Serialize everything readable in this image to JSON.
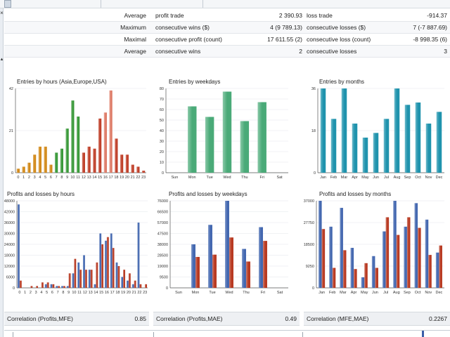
{
  "stats": {
    "rows": [
      {
        "label": "Average",
        "name1": "profit trade",
        "value1": "2 390.93",
        "name2": "loss trade",
        "value2": "-914.37"
      },
      {
        "label": "Maximum",
        "name1": "consecutive wins ($)",
        "value1": "4 (9 789.13)",
        "name2": "consecutive losses ($)",
        "value2": "7 (-7 887.69)"
      },
      {
        "label": "Maximal",
        "name1": "consecutive profit (count)",
        "value1": "17 611.55 (2)",
        "name2": "consecutive loss (count)",
        "value2": "-8 998.35 (6)"
      },
      {
        "label": "Average",
        "name1": "consecutive wins",
        "value1": "2",
        "name2": "consecutive losses",
        "value2": "3"
      }
    ]
  },
  "colors": {
    "hours_orange": "#d28a1a",
    "hours_green": "#3a9a3a",
    "hours_red": "#c0412b",
    "hours_pink": "#de7c68",
    "weekday_green": "#4aaa78",
    "month_teal": "#1f93ad",
    "profit_blue": "#4468b0",
    "loss_red": "#b83a22"
  },
  "correlations": [
    {
      "label": "Correlation (Profits,MFE)",
      "value": "0.85"
    },
    {
      "label": "Correlation (Profits,MAE)",
      "value": "0.49"
    },
    {
      "label": "Correlation (MFE,MAE)",
      "value": "0.2267"
    }
  ],
  "chart_data": [
    {
      "id": "entries_hours",
      "type": "bar",
      "title": "Entries by hours (Asia,Europe,USA)",
      "categories": [
        "0",
        "1",
        "2",
        "3",
        "4",
        "5",
        "6",
        "7",
        "8",
        "9",
        "10",
        "11",
        "12",
        "13",
        "14",
        "15",
        "16",
        "17",
        "18",
        "19",
        "20",
        "21",
        "22",
        "23"
      ],
      "values": [
        2,
        3,
        5,
        9,
        13,
        13,
        4,
        10,
        12,
        22,
        36,
        28,
        10,
        13,
        12,
        27,
        30,
        41,
        17,
        9,
        9,
        4,
        3,
        1
      ],
      "ylim": [
        0,
        42
      ],
      "yticks": [
        "0",
        "21",
        "42"
      ]
    },
    {
      "id": "entries_weekdays",
      "type": "bar",
      "title": "Entries by weekdays",
      "categories": [
        "Sun",
        "Mon",
        "Tue",
        "Wed",
        "Thu",
        "Fri",
        "Sat"
      ],
      "values": [
        0,
        63,
        53,
        77,
        49,
        67,
        0
      ],
      "ylim": [
        0,
        80
      ],
      "yticks": [
        "0",
        "10",
        "20",
        "30",
        "40",
        "50",
        "60",
        "70",
        "80"
      ]
    },
    {
      "id": "entries_months",
      "type": "bar",
      "title": "Entries by months",
      "categories": [
        "Jan",
        "Feb",
        "Mar",
        "Apr",
        "May",
        "Jun",
        "Jul",
        "Aug",
        "Sep",
        "Oct",
        "Nov",
        "Dec"
      ],
      "values": [
        36,
        23,
        36,
        21,
        15,
        17,
        23,
        36,
        29,
        30,
        21,
        26
      ],
      "ylim": [
        0,
        36
      ],
      "yticks": [
        "0",
        "18",
        "36"
      ]
    },
    {
      "id": "pl_hours",
      "type": "bar",
      "title": "Profits and losses by hours",
      "categories": [
        "0",
        "1",
        "2",
        "3",
        "4",
        "5",
        "6",
        "7",
        "8",
        "9",
        "10",
        "11",
        "12",
        "13",
        "14",
        "15",
        "16",
        "17",
        "18",
        "19",
        "20",
        "21",
        "22",
        "23"
      ],
      "series": [
        {
          "values": [
            46000,
            0,
            0,
            0,
            0,
            2000,
            2000,
            1000,
            1000,
            1000,
            8000,
            14000,
            18000,
            10000,
            2000,
            30000,
            26000,
            30000,
            14000,
            6000,
            4000,
            2000,
            36000,
            0
          ]
        },
        {
          "values": [
            4000,
            0,
            1000,
            1000,
            3000,
            3000,
            2000,
            1000,
            1000,
            8000,
            16000,
            10000,
            10000,
            10000,
            14000,
            24000,
            28000,
            22000,
            12000,
            10000,
            8000,
            4000,
            2000,
            2000
          ]
        }
      ],
      "ylim": [
        0,
        48000
      ],
      "yticks": [
        "0",
        "6000",
        "12000",
        "18000",
        "24000",
        "30000",
        "36000",
        "42000",
        "48000"
      ]
    },
    {
      "id": "pl_weekdays",
      "type": "bar",
      "title": "Profits and losses by weekdays",
      "categories": [
        "Sun",
        "Mon",
        "Tue",
        "Wed",
        "Thu",
        "Fri",
        "Sat"
      ],
      "series": [
        {
          "values": [
            0,
            38000,
            55000,
            76000,
            34000,
            53000,
            0
          ]
        },
        {
          "values": [
            0,
            27000,
            29000,
            44000,
            23000,
            41000,
            0
          ]
        }
      ],
      "ylim": [
        0,
        76000
      ],
      "yticks": [
        "0",
        "9500",
        "19000",
        "28500",
        "38000",
        "47500",
        "57000",
        "66500",
        "76000"
      ]
    },
    {
      "id": "pl_months",
      "type": "bar",
      "title": "Profits and losses by months",
      "categories": [
        "Jan",
        "Feb",
        "Mar",
        "Apr",
        "May",
        "Jun",
        "Jul",
        "Aug",
        "Sep",
        "Oct",
        "Nov",
        "Dec"
      ],
      "series": [
        {
          "values": [
            37000,
            26000,
            34000,
            17000,
            4500,
            13500,
            24000,
            37000,
            26000,
            36000,
            29000,
            15000
          ]
        },
        {
          "values": [
            25000,
            8500,
            16000,
            8000,
            10500,
            8500,
            30000,
            22500,
            30000,
            25500,
            14000,
            18000
          ]
        }
      ],
      "ylim": [
        0,
        37000
      ],
      "yticks": [
        "0",
        "9250",
        "18500",
        "27750",
        "37000"
      ]
    }
  ]
}
